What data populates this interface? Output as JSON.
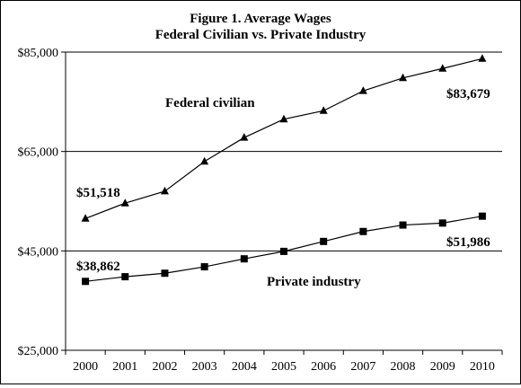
{
  "chart_data": {
    "type": "line",
    "title": "Figure 1. Average Wages",
    "subtitle": "Federal Civilian vs. Private Industry",
    "x": [
      "2000",
      "2001",
      "2002",
      "2003",
      "2004",
      "2005",
      "2006",
      "2007",
      "2008",
      "2009",
      "2010"
    ],
    "ylim": [
      25000,
      85000
    ],
    "yticks": [
      25000,
      45000,
      65000,
      85000
    ],
    "ytick_labels": [
      "$25,000",
      "$45,000",
      "$65,000",
      "$85,000"
    ],
    "grid_y": [
      65000,
      45000
    ],
    "series": [
      {
        "name": "Federal civilian",
        "marker": "triangle",
        "values": [
          51518,
          54600,
          57000,
          63000,
          67800,
          71500,
          73200,
          77200,
          79800,
          81700,
          83679
        ]
      },
      {
        "name": "Private industry",
        "marker": "square",
        "values": [
          38862,
          39800,
          40500,
          41800,
          43400,
          44900,
          46900,
          48900,
          50200,
          50600,
          51986
        ]
      }
    ],
    "annotations": {
      "federal_start": "$51,518",
      "federal_end": "$83,679",
      "private_start": "$38,862",
      "private_end": "$51,986"
    },
    "colors": {
      "line": "#000000",
      "grid": "#000000"
    }
  }
}
